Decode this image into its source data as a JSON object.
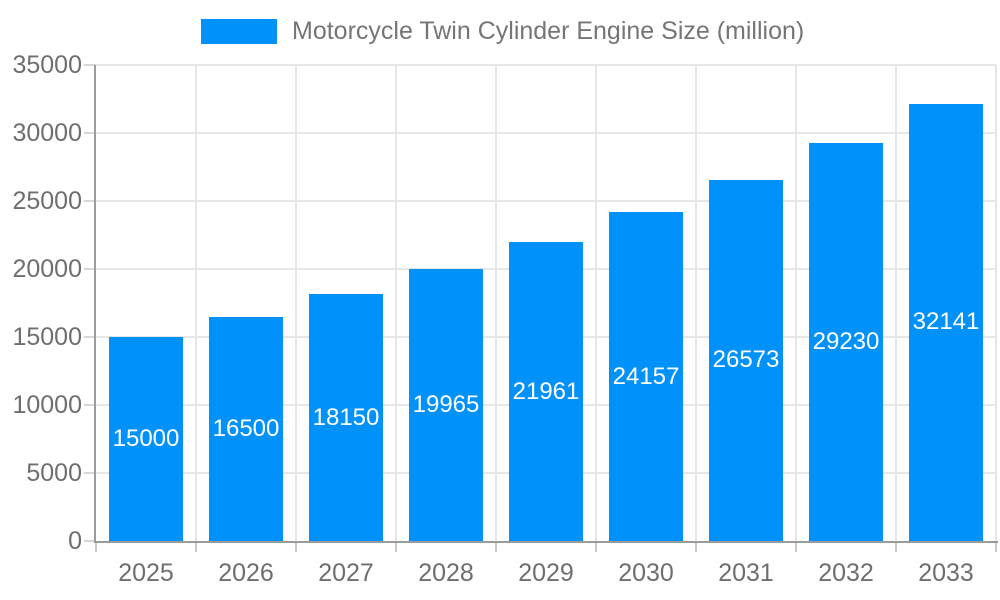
{
  "legend": {
    "label": "Motorcycle Twin Cylinder Engine Size (million)"
  },
  "chart_data": {
    "type": "bar",
    "title": "Motorcycle Twin Cylinder Engine Size (million)",
    "series_name": "Motorcycle Twin Cylinder Engine Size (million)",
    "categories": [
      "2025",
      "2026",
      "2027",
      "2028",
      "2029",
      "2030",
      "2031",
      "2032",
      "2033"
    ],
    "values": [
      15000,
      16500,
      18150,
      19965,
      21961,
      24157,
      26573,
      29230,
      32141
    ],
    "bar_value_labels": [
      "15000",
      "16500",
      "18150",
      "19965",
      "21961",
      "24157",
      "26573",
      "29230",
      "32141"
    ],
    "xlabel": "",
    "ylabel": "",
    "ylim": [
      0,
      35000
    ],
    "yticks": [
      0,
      5000,
      10000,
      15000,
      20000,
      25000,
      30000,
      35000
    ],
    "ytick_labels": [
      "0",
      "5000",
      "10000",
      "15000",
      "20000",
      "25000",
      "30000",
      "35000"
    ],
    "grid": true,
    "legend_position": "top",
    "colors": {
      "bar": "#0191FA",
      "bar_label_text": "#FFFFFF",
      "axis_text": "#6E6E6E",
      "legend_text": "#757575",
      "gridline": "#E6E6E6",
      "axis_line": "#9B9B9B"
    }
  }
}
